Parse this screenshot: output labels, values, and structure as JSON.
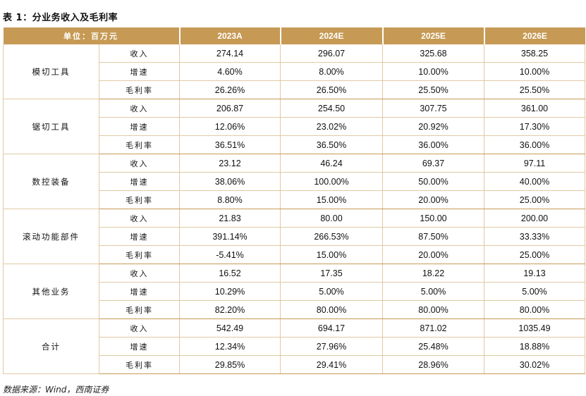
{
  "title": "表 1：分业务收入及毛利率",
  "source": "数据来源：Wind，西南证券",
  "header": {
    "unit_label": "单位：百万元",
    "years": [
      "2023A",
      "2024E",
      "2025E",
      "2026E"
    ]
  },
  "segments": [
    {
      "name": "模切工具",
      "rows": [
        {
          "metric": "收入",
          "values": [
            "274.14",
            "296.07",
            "325.68",
            "358.25"
          ]
        },
        {
          "metric": "增速",
          "values": [
            "4.60%",
            "8.00%",
            "10.00%",
            "10.00%"
          ]
        },
        {
          "metric": "毛利率",
          "values": [
            "26.26%",
            "26.50%",
            "25.50%",
            "25.50%"
          ]
        }
      ]
    },
    {
      "name": "锯切工具",
      "rows": [
        {
          "metric": "收入",
          "values": [
            "206.87",
            "254.50",
            "307.75",
            "361.00"
          ]
        },
        {
          "metric": "增速",
          "values": [
            "12.06%",
            "23.02%",
            "20.92%",
            "17.30%"
          ]
        },
        {
          "metric": "毛利率",
          "values": [
            "36.51%",
            "36.50%",
            "36.00%",
            "36.00%"
          ]
        }
      ]
    },
    {
      "name": "数控装备",
      "rows": [
        {
          "metric": "收入",
          "values": [
            "23.12",
            "46.24",
            "69.37",
            "97.11"
          ]
        },
        {
          "metric": "增速",
          "values": [
            "38.06%",
            "100.00%",
            "50.00%",
            "40.00%"
          ]
        },
        {
          "metric": "毛利率",
          "values": [
            "8.80%",
            "15.00%",
            "20.00%",
            "25.00%"
          ]
        }
      ]
    },
    {
      "name": "滚动功能部件",
      "rows": [
        {
          "metric": "收入",
          "values": [
            "21.83",
            "80.00",
            "150.00",
            "200.00"
          ]
        },
        {
          "metric": "增速",
          "values": [
            "391.14%",
            "266.53%",
            "87.50%",
            "33.33%"
          ]
        },
        {
          "metric": "毛利率",
          "values": [
            "-5.41%",
            "15.00%",
            "20.00%",
            "25.00%"
          ]
        }
      ]
    },
    {
      "name": "其他业务",
      "rows": [
        {
          "metric": "收入",
          "values": [
            "16.52",
            "17.35",
            "18.22",
            "19.13"
          ]
        },
        {
          "metric": "增速",
          "values": [
            "10.29%",
            "5.00%",
            "5.00%",
            "5.00%"
          ]
        },
        {
          "metric": "毛利率",
          "values": [
            "82.20%",
            "80.00%",
            "80.00%",
            "80.00%"
          ]
        }
      ]
    },
    {
      "name": "合计",
      "rows": [
        {
          "metric": "收入",
          "values": [
            "542.49",
            "694.17",
            "871.02",
            "1035.49"
          ]
        },
        {
          "metric": "增速",
          "values": [
            "12.34%",
            "27.96%",
            "25.48%",
            "18.88%"
          ]
        },
        {
          "metric": "毛利率",
          "values": [
            "29.85%",
            "29.41%",
            "28.96%",
            "30.02%"
          ]
        }
      ]
    }
  ]
}
